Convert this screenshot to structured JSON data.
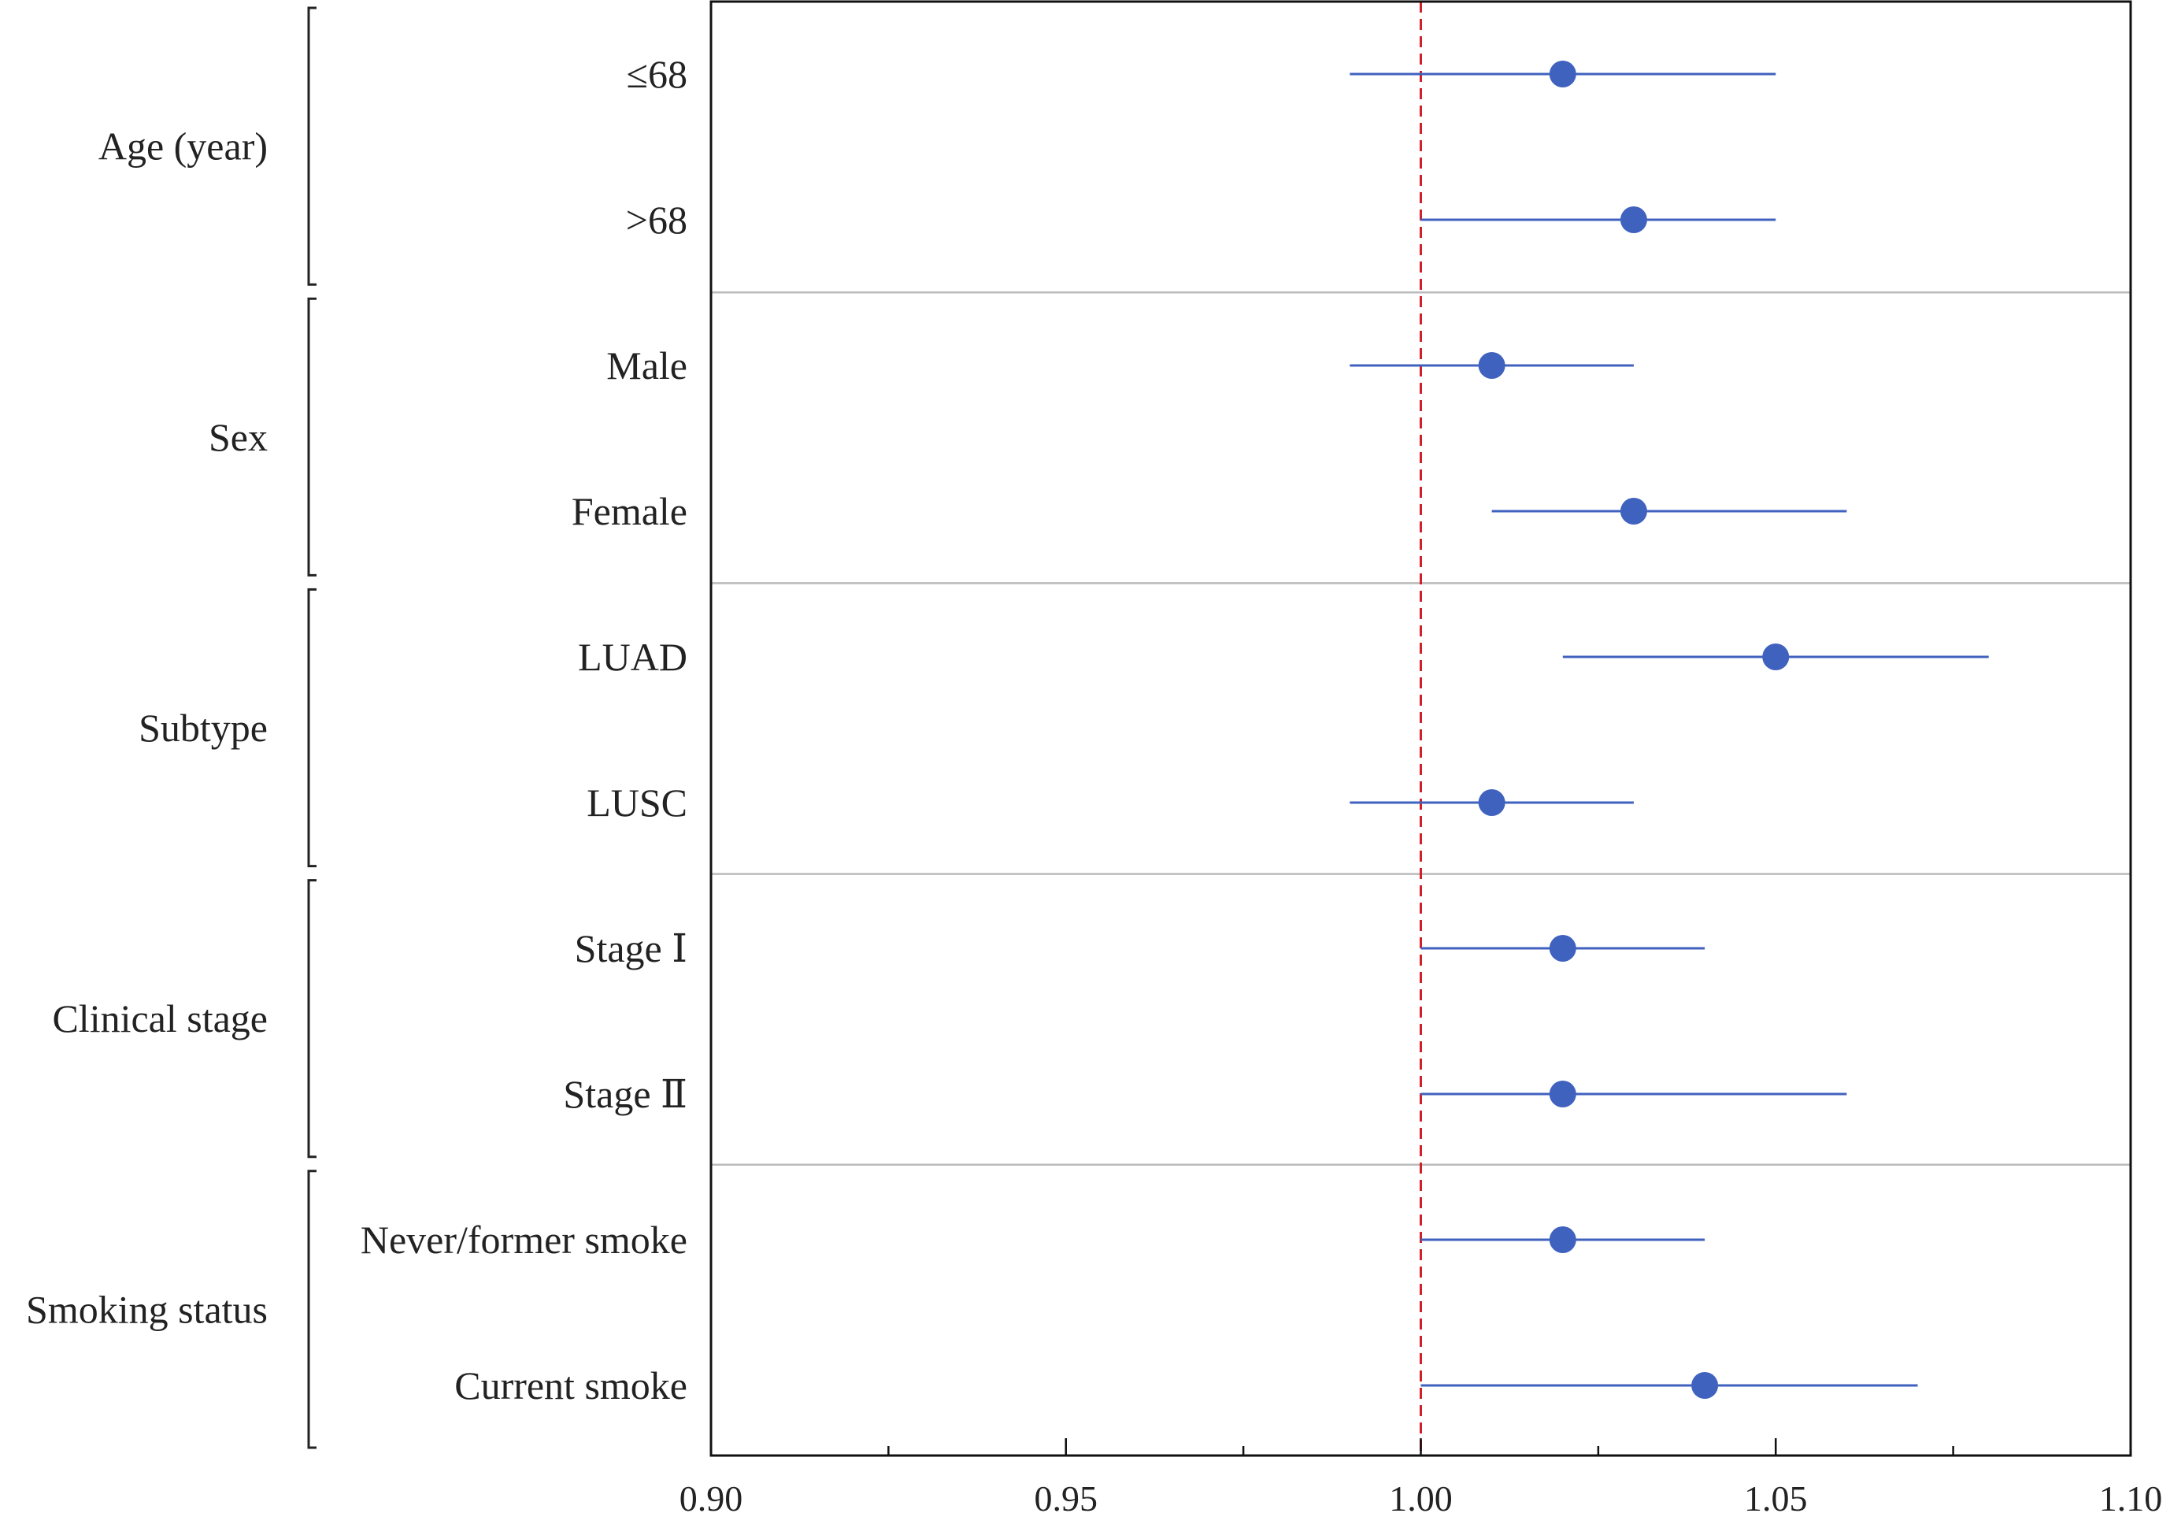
{
  "chart_data": {
    "type": "forest",
    "title": "",
    "xlabel": "",
    "ylabel": "",
    "xlim": [
      0.9,
      1.1
    ],
    "x_ticks": [
      "0.90",
      "0.95",
      "1.00",
      "1.05",
      "1.10"
    ],
    "reference_line": 1.0,
    "grid": false,
    "colors": {
      "point": "#4062BF",
      "ci": "#4062BF",
      "reference": "#D0202A",
      "frame": "#111111",
      "separator": "#BBBBBB"
    },
    "groups": [
      {
        "name": "Age (year)",
        "rows": [
          {
            "label": "≤68",
            "estimate": 1.02,
            "lower": 0.99,
            "upper": 1.05
          },
          {
            "label": ">68",
            "estimate": 1.03,
            "lower": 1.0,
            "upper": 1.05
          }
        ]
      },
      {
        "name": "Sex",
        "rows": [
          {
            "label": "Male",
            "estimate": 1.01,
            "lower": 0.99,
            "upper": 1.03
          },
          {
            "label": "Female",
            "estimate": 1.03,
            "lower": 1.01,
            "upper": 1.06
          }
        ]
      },
      {
        "name": "Subtype",
        "rows": [
          {
            "label": "LUAD",
            "estimate": 1.05,
            "lower": 1.02,
            "upper": 1.08
          },
          {
            "label": "LUSC",
            "estimate": 1.01,
            "lower": 0.99,
            "upper": 1.03
          }
        ]
      },
      {
        "name": "Clinical stage",
        "rows": [
          {
            "label": "Stage Ⅰ",
            "estimate": 1.02,
            "lower": 1.0,
            "upper": 1.04
          },
          {
            "label": "Stage Ⅱ",
            "estimate": 1.02,
            "lower": 1.0,
            "upper": 1.06
          }
        ]
      },
      {
        "name": "Smoking status",
        "rows": [
          {
            "label": "Never/former smoke",
            "estimate": 1.02,
            "lower": 1.0,
            "upper": 1.04
          },
          {
            "label": "Current smoke",
            "estimate": 1.04,
            "lower": 1.0,
            "upper": 1.07
          }
        ]
      }
    ]
  }
}
